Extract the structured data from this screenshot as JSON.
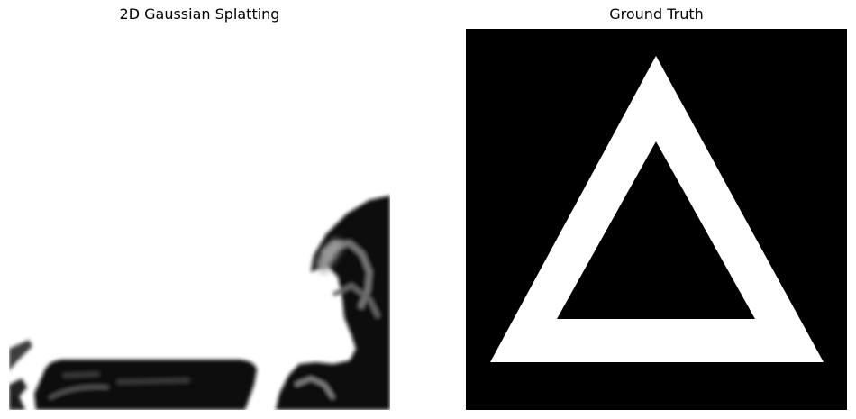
{
  "figure": {
    "left_panel": {
      "title": "2D Gaussian Splatting",
      "background": "#ffffff",
      "foreground": "#000000"
    },
    "right_panel": {
      "title": "Ground Truth",
      "background": "#000000",
      "foreground": "#ffffff"
    }
  }
}
